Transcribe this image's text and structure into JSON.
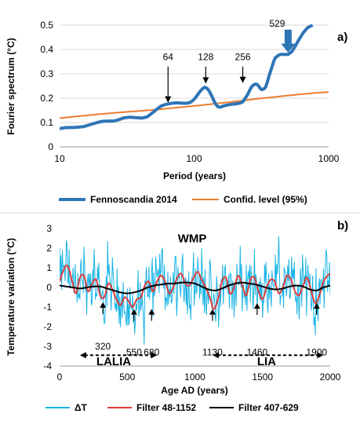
{
  "chart_data": [
    {
      "type": "line",
      "panel_label": "a)",
      "xlabel": "Period (years)",
      "ylabel": "Fourier spectrum (°C)",
      "x_scale": "log",
      "xlim": [
        10,
        1000
      ],
      "ylim": [
        0,
        0.5
      ],
      "x_ticks": [
        "10",
        "100",
        "1000"
      ],
      "y_ticks": [
        "0",
        "0.1",
        "0.2",
        "0.3",
        "0.4",
        "0.5"
      ],
      "grid": "horizontal",
      "legend_position": "bottom",
      "series": [
        {
          "name": "Fennoscandia 2014",
          "color": "#2E75B6",
          "x": [
            10,
            11,
            13,
            15,
            17,
            19,
            21,
            23,
            25,
            27,
            30,
            33,
            37,
            41,
            45,
            49,
            53,
            57,
            61,
            65,
            70,
            75,
            80,
            85,
            90,
            95,
            100,
            105,
            110,
            115,
            120,
            125,
            130,
            135,
            140,
            145,
            150,
            155,
            160,
            170,
            180,
            190,
            200,
            210,
            220,
            230,
            240,
            250,
            260,
            270,
            280,
            290,
            300,
            310,
            320,
            330,
            340,
            350,
            360,
            370,
            380,
            390,
            400,
            420,
            440,
            460,
            480,
            500,
            530,
            560,
            600,
            650,
            700,
            760
          ],
          "y": [
            0.075,
            0.079,
            0.08,
            0.083,
            0.092,
            0.1,
            0.105,
            0.106,
            0.106,
            0.11,
            0.119,
            0.122,
            0.12,
            0.118,
            0.124,
            0.14,
            0.155,
            0.168,
            0.174,
            0.177,
            0.18,
            0.181,
            0.18,
            0.179,
            0.18,
            0.185,
            0.195,
            0.21,
            0.226,
            0.238,
            0.245,
            0.24,
            0.228,
            0.21,
            0.19,
            0.175,
            0.165,
            0.163,
            0.165,
            0.17,
            0.173,
            0.175,
            0.176,
            0.178,
            0.18,
            0.185,
            0.2,
            0.215,
            0.235,
            0.25,
            0.256,
            0.258,
            0.252,
            0.24,
            0.235,
            0.238,
            0.245,
            0.265,
            0.29,
            0.31,
            0.33,
            0.35,
            0.365,
            0.375,
            0.38,
            0.38,
            0.38,
            0.38,
            0.39,
            0.41,
            0.44,
            0.47,
            0.49,
            0.5
          ]
        },
        {
          "name": "Confid. level (95%)",
          "color": "#ED7D31",
          "x": [
            10,
            20,
            30,
            50,
            100,
            200,
            300,
            500,
            800,
            1000
          ],
          "y": [
            0.118,
            0.135,
            0.143,
            0.152,
            0.168,
            0.186,
            0.198,
            0.211,
            0.222,
            0.225
          ]
        }
      ],
      "annotations": [
        {
          "label": "64",
          "x": 64,
          "y_tip": 0.182,
          "y_top": 0.33,
          "style": "arrow"
        },
        {
          "label": "128",
          "x": 122,
          "y_tip": 0.26,
          "y_top": 0.33,
          "style": "arrow"
        },
        {
          "label": "256",
          "x": 230,
          "y_tip": 0.262,
          "y_top": 0.33,
          "style": "arrow"
        },
        {
          "label": "529",
          "x": 500,
          "y_tip": 0.39,
          "y_top": 0.48,
          "style": "block-arrow"
        }
      ]
    },
    {
      "type": "line",
      "panel_label": "b)",
      "xlabel": "Age AD (years)",
      "ylabel": "Temperature variation (°C)",
      "xlim": [
        0,
        2000
      ],
      "ylim": [
        -4,
        3
      ],
      "x_ticks": [
        "0",
        "500",
        "1000",
        "1500",
        "2000"
      ],
      "y_ticks": [
        "-4",
        "-3",
        "-2",
        "-1",
        "0",
        "1",
        "2",
        "3"
      ],
      "grid": "none",
      "legend_position": "bottom",
      "series": [
        {
          "name": "ΔT",
          "color": "#19B4E6",
          "kind": "noisy",
          "x_step": 5
        },
        {
          "name": "Filter 48-1152",
          "color": "#E03C3C",
          "x": [
            0,
            30,
            60,
            90,
            120,
            150,
            180,
            210,
            240,
            270,
            300,
            330,
            360,
            390,
            420,
            450,
            480,
            510,
            540,
            570,
            600,
            630,
            660,
            690,
            720,
            750,
            780,
            810,
            840,
            870,
            900,
            930,
            960,
            990,
            1020,
            1050,
            1080,
            1110,
            1140,
            1170,
            1200,
            1230,
            1260,
            1290,
            1320,
            1350,
            1380,
            1410,
            1440,
            1470,
            1500,
            1530,
            1560,
            1590,
            1620,
            1650,
            1680,
            1710,
            1740,
            1770,
            1800,
            1830,
            1860,
            1890,
            1920,
            1950,
            1980,
            2000
          ],
          "y": [
            0.3,
            0.9,
            1.1,
            0.4,
            -0.3,
            0.5,
            0.6,
            -0.2,
            0.2,
            0.4,
            -0.4,
            -0.5,
            0.2,
            -0.1,
            -0.6,
            -0.9,
            -0.5,
            -0.7,
            -1.0,
            -0.6,
            -0.5,
            0.1,
            0.3,
            -0.2,
            0.3,
            0.6,
            0.3,
            -0.3,
            0.0,
            0.5,
            0.7,
            0.2,
            0.1,
            0.5,
            0.8,
            0.4,
            0.0,
            -0.5,
            -1.1,
            -0.6,
            0.3,
            0.5,
            -0.3,
            0.0,
            0.6,
            0.1,
            -0.4,
            0.4,
            0.5,
            -0.2,
            -0.6,
            0.0,
            0.4,
            0.3,
            -0.3,
            0.0,
            0.6,
            0.4,
            -0.2,
            -0.4,
            0.1,
            0.5,
            -0.2,
            -0.8,
            -0.4,
            0.3,
            0.6,
            0.7
          ]
        },
        {
          "name": "Filter 407-629",
          "color": "#000000",
          "x": [
            0,
            50,
            100,
            150,
            200,
            250,
            300,
            350,
            400,
            450,
            500,
            550,
            600,
            650,
            700,
            750,
            800,
            850,
            900,
            950,
            1000,
            1050,
            1100,
            1150,
            1200,
            1250,
            1300,
            1350,
            1400,
            1450,
            1500,
            1550,
            1600,
            1650,
            1700,
            1750,
            1800,
            1850,
            1900,
            1950,
            2000
          ],
          "y": [
            0.1,
            0.05,
            0.0,
            -0.05,
            0.0,
            0.05,
            0.05,
            -0.05,
            -0.15,
            -0.25,
            -0.3,
            -0.25,
            -0.15,
            0.0,
            0.1,
            0.15,
            0.2,
            0.2,
            0.25,
            0.25,
            0.2,
            0.05,
            -0.1,
            -0.15,
            -0.05,
            0.1,
            0.2,
            0.25,
            0.2,
            0.15,
            0.05,
            -0.05,
            -0.1,
            -0.05,
            0.05,
            0.1,
            0.05,
            -0.1,
            -0.15,
            0.0,
            0.1
          ]
        }
      ],
      "annotations": [
        {
          "label": "320",
          "x": 320,
          "y_tip": -0.75,
          "y_top": -1.35,
          "y_text": -3.0
        },
        {
          "label": "550",
          "x": 550,
          "y_tip": -1.1,
          "y_top": -1.7,
          "y_text": -3.3
        },
        {
          "label": "680",
          "x": 680,
          "y_tip": -1.1,
          "y_top": -1.7,
          "y_text": -3.3
        },
        {
          "label": "1130",
          "x": 1130,
          "y_tip": -1.1,
          "y_top": -1.7,
          "y_text": -3.3
        },
        {
          "label": "1460",
          "x": 1460,
          "y_tip": -0.8,
          "y_top": -1.4,
          "y_text": -3.3
        },
        {
          "label": "1900",
          "x": 1900,
          "y_tip": -0.8,
          "y_top": -1.4,
          "y_text": -3.3
        }
      ],
      "period_labels": [
        {
          "label": "WMP",
          "x": 980,
          "y": 2.5
        },
        {
          "label": "LALIA",
          "x": 400,
          "y": -3.75,
          "x_from": 150,
          "x_to": 720,
          "y_arrow": -3.45
        },
        {
          "label": "LIA",
          "x": 1530,
          "y": -3.75,
          "x_from": 1130,
          "x_to": 1950,
          "y_arrow": -3.45
        }
      ]
    }
  ]
}
